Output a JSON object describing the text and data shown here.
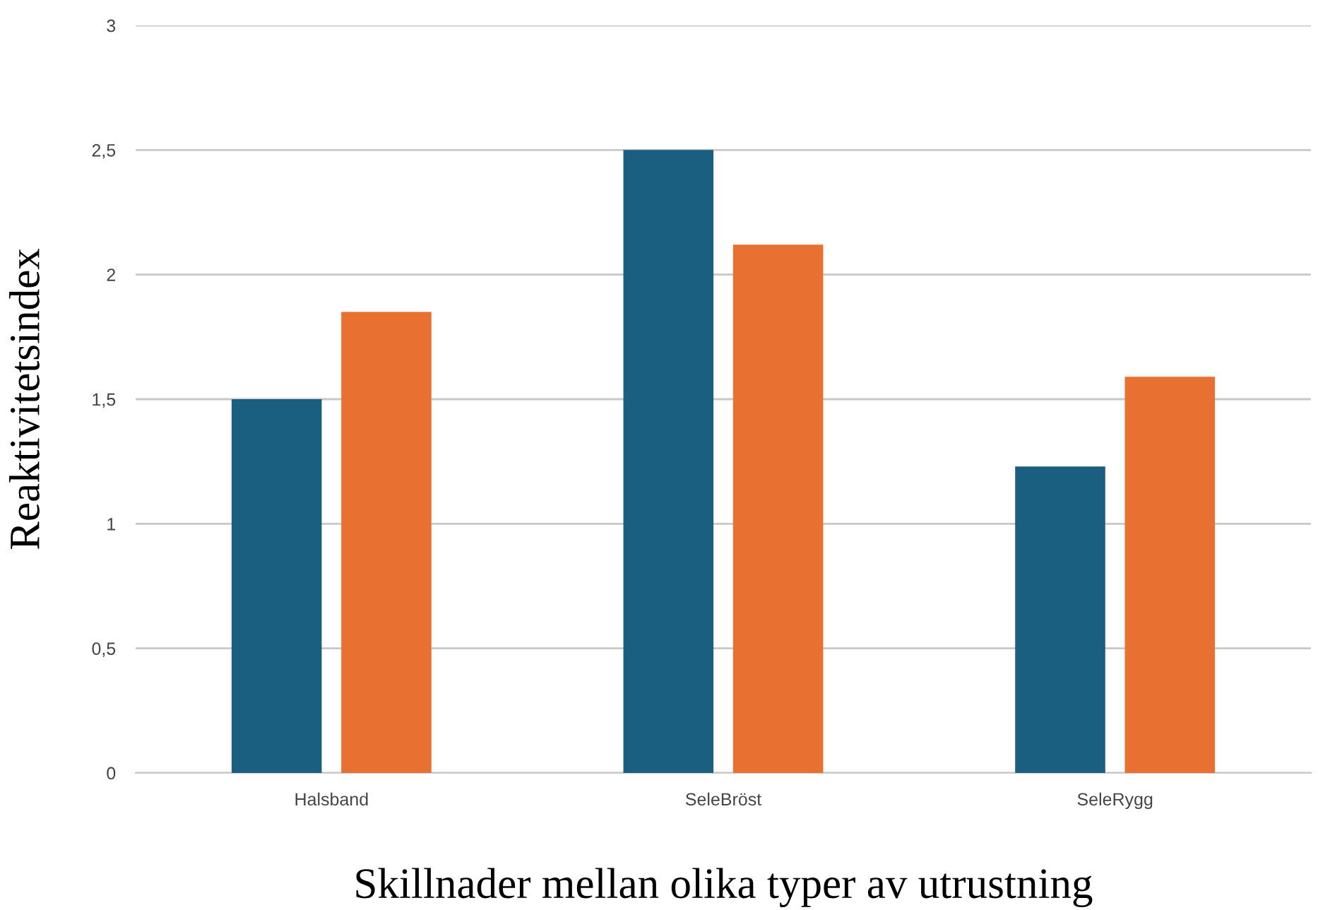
{
  "chart_data": {
    "type": "bar",
    "xlabel": "Skillnader mellan olika typer av utrustning",
    "ylabel": "Reaktivitetsindex",
    "categories": [
      "Halsband",
      "SeleBröst",
      "SeleRygg"
    ],
    "series": [
      {
        "color": "#1a5e80",
        "values": [
          1.5,
          2.5,
          1.23
        ]
      },
      {
        "color": "#e87030",
        "values": [
          1.85,
          2.12,
          1.59
        ]
      }
    ],
    "ylim": [
      0,
      3
    ],
    "yticks": [
      0,
      {
        "value": 0.5,
        "label": "0,5"
      },
      1,
      {
        "value": 1.5,
        "label": "1,5"
      },
      2,
      {
        "value": 2.5,
        "label": "2,5"
      },
      3
    ],
    "grid": "y",
    "legend": false
  }
}
